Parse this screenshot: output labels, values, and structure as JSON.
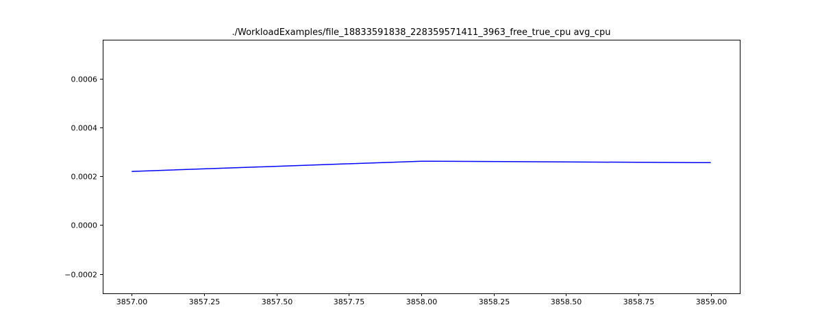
{
  "chart_data": {
    "type": "line",
    "title": "./WorkloadExamples/file_18833591838_228359571411_3963_free_true_cpu avg_cpu",
    "xlabel": "",
    "ylabel": "",
    "xlim": [
      3856.9,
      3859.1
    ],
    "ylim": [
      -0.00028,
      0.00076
    ],
    "x_ticks": [
      3857.0,
      3857.25,
      3857.5,
      3857.75,
      3858.0,
      3858.25,
      3858.5,
      3858.75,
      3859.0
    ],
    "x_tick_labels": [
      "3857.00",
      "3857.25",
      "3857.50",
      "3857.75",
      "3858.00",
      "3858.25",
      "3858.50",
      "3858.75",
      "3859.00"
    ],
    "y_ticks": [
      -0.0002,
      0.0,
      0.0002,
      0.0004,
      0.0006
    ],
    "y_tick_labels": [
      "−0.0002",
      "0.0000",
      "0.0002",
      "0.0004",
      "0.0006"
    ],
    "grid": false,
    "legend": "none",
    "series": [
      {
        "color": "#0000ff",
        "x": [
          3857,
          3858,
          3859
        ],
        "y": [
          0.00022,
          0.000262,
          0.000256
        ]
      }
    ]
  }
}
